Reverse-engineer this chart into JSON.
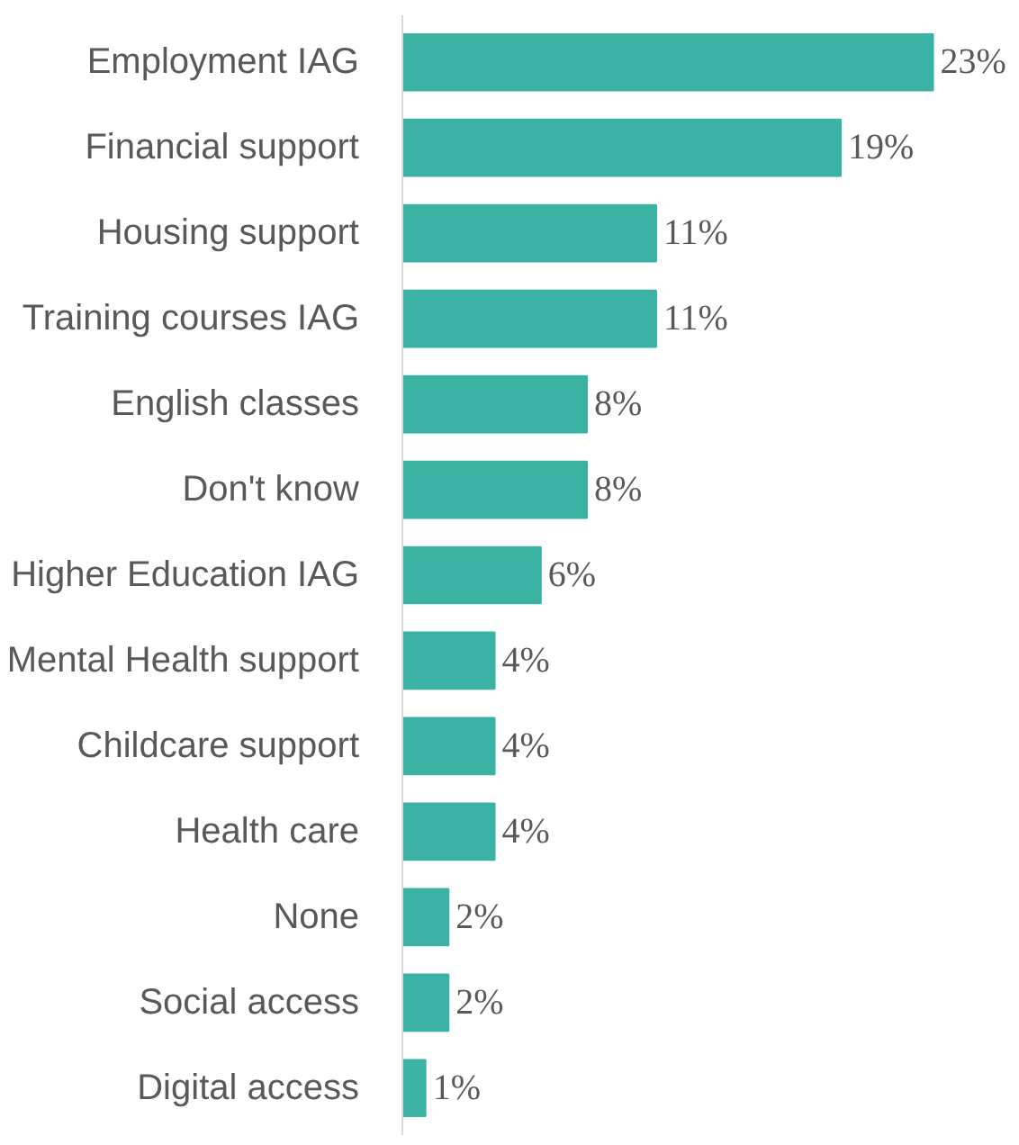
{
  "chart_data": {
    "type": "bar",
    "orientation": "horizontal",
    "categories": [
      "Employment IAG",
      "Financial support",
      "Housing support",
      "Training courses IAG",
      "English classes",
      "Don't know",
      "Higher Education IAG",
      "Mental Health support",
      "Childcare support",
      "Health care",
      "None",
      "Social access",
      "Digital access"
    ],
    "values": [
      23,
      19,
      11,
      11,
      8,
      8,
      6,
      4,
      4,
      4,
      2,
      2,
      1
    ],
    "value_labels": [
      "23%",
      "19%",
      "11%",
      "11%",
      "8%",
      "8%",
      "6%",
      "4%",
      "4%",
      "4%",
      "2%",
      "2%",
      "1%"
    ],
    "color": "#3bb2a3"
  }
}
